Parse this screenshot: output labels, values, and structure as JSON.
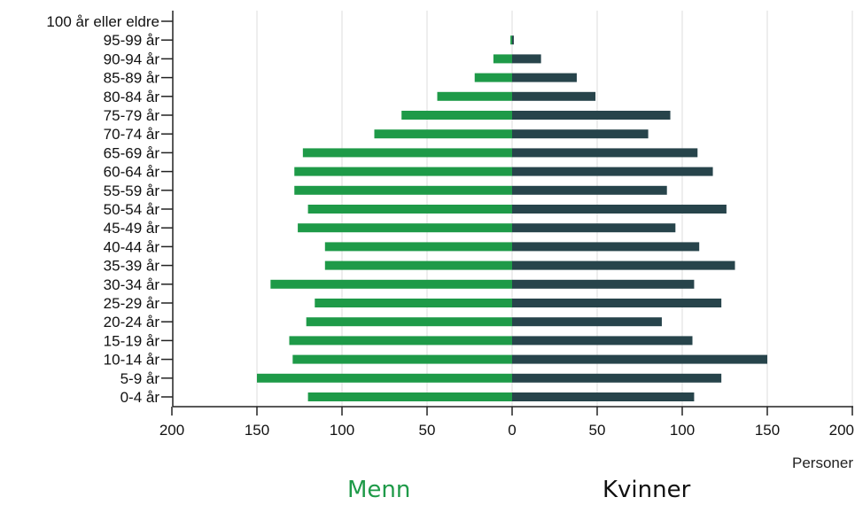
{
  "chart_data": {
    "type": "bar",
    "orientation": "horizontal",
    "categories": [
      "100 år eller eldre",
      "95-99 år",
      "90-94 år",
      "85-89 år",
      "80-84 år",
      "75-79 år",
      "70-74 år",
      "65-69 år",
      "60-64 år",
      "55-59 år",
      "50-54 år",
      "45-49 år",
      "40-44 år",
      "35-39 år",
      "30-34 år",
      "25-29 år",
      "20-24 år",
      "15-19 år",
      "10-14 år",
      "5-9 år",
      "0-4 år"
    ],
    "series": [
      {
        "name": "Menn",
        "color": "#1e9a48",
        "values": [
          0,
          1,
          11,
          22,
          44,
          65,
          81,
          123,
          128,
          128,
          120,
          126,
          110,
          110,
          142,
          116,
          121,
          131,
          129,
          150,
          120
        ]
      },
      {
        "name": "Kvinner",
        "color": "#27444b",
        "values": [
          0,
          1,
          17,
          38,
          49,
          93,
          80,
          109,
          118,
          91,
          126,
          96,
          110,
          131,
          107,
          123,
          88,
          106,
          150,
          123,
          107
        ]
      }
    ],
    "xlabel": "Personer",
    "xlim": [
      -200,
      200
    ],
    "xticks": [
      -200,
      -150,
      -100,
      -50,
      0,
      50,
      100,
      150,
      200
    ],
    "xtick_labels": [
      "200",
      "150",
      "100",
      "50",
      "0",
      "50",
      "100",
      "150",
      "200"
    ],
    "grid": "vertical",
    "legend_position": "bottom"
  }
}
